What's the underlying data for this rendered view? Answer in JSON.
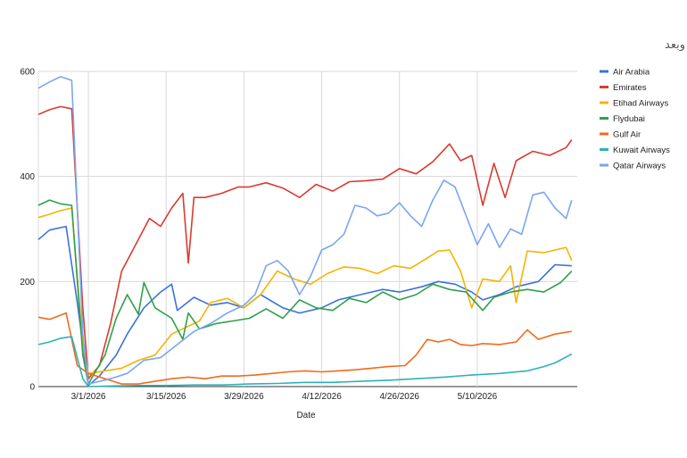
{
  "chart_data": {
    "type": "line",
    "title": "الرحلات اليومية - طيران الخليج قبل وبعد",
    "xlabel": "Date",
    "ylabel": "",
    "ylim": [
      0,
      600
    ],
    "yticks": [
      0,
      200,
      400,
      600
    ],
    "x_start": "2026-02-20",
    "x_end": "2026-05-28",
    "xticks": [
      {
        "date": "2026-03-01",
        "label": "3/1/2026"
      },
      {
        "date": "2026-03-15",
        "label": "3/15/2026"
      },
      {
        "date": "2026-03-29",
        "label": "3/29/2026"
      },
      {
        "date": "2026-04-12",
        "label": "4/12/2026"
      },
      {
        "date": "2026-04-26",
        "label": "4/26/2026"
      },
      {
        "date": "2026-05-10",
        "label": "5/10/2026"
      }
    ],
    "grid": true,
    "legend_position": "right",
    "series": [
      {
        "name": "Air Arabia",
        "color": "#3b73d9",
        "points": [
          [
            "2026-02-20",
            280
          ],
          [
            "2026-02-22",
            298
          ],
          [
            "2026-02-25",
            305
          ],
          [
            "2026-02-27",
            160
          ],
          [
            "2026-03-01",
            2
          ],
          [
            "2026-03-03",
            20
          ],
          [
            "2026-03-06",
            60
          ],
          [
            "2026-03-08",
            100
          ],
          [
            "2026-03-11",
            150
          ],
          [
            "2026-03-14",
            180
          ],
          [
            "2026-03-16",
            195
          ],
          [
            "2026-03-17",
            145
          ],
          [
            "2026-03-20",
            170
          ],
          [
            "2026-03-23",
            155
          ],
          [
            "2026-03-26",
            160
          ],
          [
            "2026-03-29",
            150
          ],
          [
            "2026-04-01",
            175
          ],
          [
            "2026-04-05",
            150
          ],
          [
            "2026-04-08",
            140
          ],
          [
            "2026-04-12",
            150
          ],
          [
            "2026-04-15",
            165
          ],
          [
            "2026-04-19",
            175
          ],
          [
            "2026-04-23",
            185
          ],
          [
            "2026-04-26",
            180
          ],
          [
            "2026-04-30",
            190
          ],
          [
            "2026-05-03",
            200
          ],
          [
            "2026-05-06",
            195
          ],
          [
            "2026-05-09",
            180
          ],
          [
            "2026-05-11",
            165
          ],
          [
            "2026-05-14",
            175
          ],
          [
            "2026-05-17",
            190
          ],
          [
            "2026-05-21",
            200
          ],
          [
            "2026-05-24",
            232
          ],
          [
            "2026-05-27",
            230
          ]
        ]
      },
      {
        "name": "Emirates",
        "color": "#d93b30",
        "points": [
          [
            "2026-02-20",
            518
          ],
          [
            "2026-02-22",
            527
          ],
          [
            "2026-02-24",
            533
          ],
          [
            "2026-02-26",
            529
          ],
          [
            "2026-02-28",
            150
          ],
          [
            "2026-03-01",
            15
          ],
          [
            "2026-03-03",
            40
          ],
          [
            "2026-03-05",
            120
          ],
          [
            "2026-03-07",
            220
          ],
          [
            "2026-03-09",
            260
          ],
          [
            "2026-03-12",
            320
          ],
          [
            "2026-03-14",
            305
          ],
          [
            "2026-03-16",
            340
          ],
          [
            "2026-03-18",
            368
          ],
          [
            "2026-03-19",
            235
          ],
          [
            "2026-03-20",
            360
          ],
          [
            "2026-03-22",
            360
          ],
          [
            "2026-03-25",
            368
          ],
          [
            "2026-03-28",
            380
          ],
          [
            "2026-03-30",
            380
          ],
          [
            "2026-04-02",
            388
          ],
          [
            "2026-04-05",
            378
          ],
          [
            "2026-04-08",
            360
          ],
          [
            "2026-04-11",
            385
          ],
          [
            "2026-04-14",
            372
          ],
          [
            "2026-04-17",
            390
          ],
          [
            "2026-04-20",
            392
          ],
          [
            "2026-04-23",
            395
          ],
          [
            "2026-04-26",
            415
          ],
          [
            "2026-04-29",
            405
          ],
          [
            "2026-05-02",
            428
          ],
          [
            "2026-05-05",
            462
          ],
          [
            "2026-05-07",
            430
          ],
          [
            "2026-05-09",
            440
          ],
          [
            "2026-05-11",
            345
          ],
          [
            "2026-05-13",
            425
          ],
          [
            "2026-05-15",
            360
          ],
          [
            "2026-05-17",
            430
          ],
          [
            "2026-05-20",
            448
          ],
          [
            "2026-05-23",
            440
          ],
          [
            "2026-05-26",
            455
          ],
          [
            "2026-05-27",
            470
          ]
        ]
      },
      {
        "name": "Etihad Airways",
        "color": "#f4b400",
        "points": [
          [
            "2026-02-20",
            322
          ],
          [
            "2026-02-22",
            328
          ],
          [
            "2026-02-24",
            335
          ],
          [
            "2026-02-26",
            340
          ],
          [
            "2026-02-28",
            80
          ],
          [
            "2026-03-01",
            25
          ],
          [
            "2026-03-04",
            30
          ],
          [
            "2026-03-07",
            35
          ],
          [
            "2026-03-10",
            50
          ],
          [
            "2026-03-13",
            60
          ],
          [
            "2026-03-16",
            100
          ],
          [
            "2026-03-18",
            110
          ],
          [
            "2026-03-21",
            125
          ],
          [
            "2026-03-23",
            160
          ],
          [
            "2026-03-26",
            168
          ],
          [
            "2026-03-29",
            150
          ],
          [
            "2026-04-01",
            175
          ],
          [
            "2026-04-04",
            220
          ],
          [
            "2026-04-07",
            205
          ],
          [
            "2026-04-10",
            195
          ],
          [
            "2026-04-13",
            215
          ],
          [
            "2026-04-16",
            228
          ],
          [
            "2026-04-19",
            225
          ],
          [
            "2026-04-22",
            215
          ],
          [
            "2026-04-25",
            230
          ],
          [
            "2026-04-28",
            225
          ],
          [
            "2026-05-01",
            245
          ],
          [
            "2026-05-03",
            258
          ],
          [
            "2026-05-05",
            260
          ],
          [
            "2026-05-07",
            220
          ],
          [
            "2026-05-09",
            150
          ],
          [
            "2026-05-11",
            205
          ],
          [
            "2026-05-14",
            200
          ],
          [
            "2026-05-16",
            230
          ],
          [
            "2026-05-17",
            160
          ],
          [
            "2026-05-19",
            258
          ],
          [
            "2026-05-22",
            255
          ],
          [
            "2026-05-26",
            265
          ],
          [
            "2026-05-27",
            240
          ]
        ]
      },
      {
        "name": "Flydubai",
        "color": "#30a04a",
        "points": [
          [
            "2026-02-20",
            345
          ],
          [
            "2026-02-22",
            355
          ],
          [
            "2026-02-24",
            348
          ],
          [
            "2026-02-26",
            345
          ],
          [
            "2026-02-28",
            60
          ],
          [
            "2026-03-01",
            5
          ],
          [
            "2026-03-04",
            60
          ],
          [
            "2026-03-06",
            130
          ],
          [
            "2026-03-08",
            175
          ],
          [
            "2026-03-10",
            138
          ],
          [
            "2026-03-11",
            198
          ],
          [
            "2026-03-13",
            150
          ],
          [
            "2026-03-16",
            130
          ],
          [
            "2026-03-18",
            90
          ],
          [
            "2026-03-19",
            140
          ],
          [
            "2026-03-21",
            110
          ],
          [
            "2026-03-24",
            120
          ],
          [
            "2026-03-27",
            125
          ],
          [
            "2026-03-30",
            130
          ],
          [
            "2026-04-02",
            148
          ],
          [
            "2026-04-05",
            130
          ],
          [
            "2026-04-08",
            165
          ],
          [
            "2026-04-11",
            150
          ],
          [
            "2026-04-14",
            145
          ],
          [
            "2026-04-17",
            168
          ],
          [
            "2026-04-20",
            160
          ],
          [
            "2026-04-23",
            180
          ],
          [
            "2026-04-26",
            165
          ],
          [
            "2026-04-29",
            175
          ],
          [
            "2026-05-02",
            195
          ],
          [
            "2026-05-05",
            185
          ],
          [
            "2026-05-08",
            180
          ],
          [
            "2026-05-11",
            145
          ],
          [
            "2026-05-13",
            170
          ],
          [
            "2026-05-16",
            180
          ],
          [
            "2026-05-19",
            185
          ],
          [
            "2026-05-22",
            180
          ],
          [
            "2026-05-25",
            198
          ],
          [
            "2026-05-27",
            220
          ]
        ]
      },
      {
        "name": "Gulf Air",
        "color": "#f26b1d",
        "points": [
          [
            "2026-02-20",
            132
          ],
          [
            "2026-02-22",
            128
          ],
          [
            "2026-02-25",
            140
          ],
          [
            "2026-02-27",
            40
          ],
          [
            "2026-03-01",
            25
          ],
          [
            "2026-03-04",
            15
          ],
          [
            "2026-03-07",
            5
          ],
          [
            "2026-03-10",
            5
          ],
          [
            "2026-03-13",
            10
          ],
          [
            "2026-03-16",
            15
          ],
          [
            "2026-03-19",
            18
          ],
          [
            "2026-03-22",
            15
          ],
          [
            "2026-03-25",
            20
          ],
          [
            "2026-03-28",
            20
          ],
          [
            "2026-03-31",
            22
          ],
          [
            "2026-04-03",
            25
          ],
          [
            "2026-04-06",
            28
          ],
          [
            "2026-04-09",
            30
          ],
          [
            "2026-04-12",
            28
          ],
          [
            "2026-04-15",
            30
          ],
          [
            "2026-04-18",
            32
          ],
          [
            "2026-04-21",
            35
          ],
          [
            "2026-04-24",
            38
          ],
          [
            "2026-04-27",
            40
          ],
          [
            "2026-04-29",
            60
          ],
          [
            "2026-05-01",
            90
          ],
          [
            "2026-05-03",
            85
          ],
          [
            "2026-05-05",
            90
          ],
          [
            "2026-05-07",
            80
          ],
          [
            "2026-05-09",
            78
          ],
          [
            "2026-05-11",
            82
          ],
          [
            "2026-05-14",
            80
          ],
          [
            "2026-05-17",
            85
          ],
          [
            "2026-05-19",
            108
          ],
          [
            "2026-05-21",
            90
          ],
          [
            "2026-05-24",
            100
          ],
          [
            "2026-05-27",
            105
          ]
        ]
      },
      {
        "name": "Kuwait Airways",
        "color": "#2bb3b8",
        "points": [
          [
            "2026-02-20",
            80
          ],
          [
            "2026-02-22",
            85
          ],
          [
            "2026-02-24",
            92
          ],
          [
            "2026-02-26",
            95
          ],
          [
            "2026-02-28",
            15
          ],
          [
            "2026-03-01",
            0
          ],
          [
            "2026-03-05",
            1
          ],
          [
            "2026-03-10",
            2
          ],
          [
            "2026-03-15",
            2
          ],
          [
            "2026-03-20",
            3
          ],
          [
            "2026-03-25",
            3
          ],
          [
            "2026-03-30",
            5
          ],
          [
            "2026-04-04",
            6
          ],
          [
            "2026-04-09",
            8
          ],
          [
            "2026-04-14",
            8
          ],
          [
            "2026-04-19",
            10
          ],
          [
            "2026-04-24",
            12
          ],
          [
            "2026-04-29",
            15
          ],
          [
            "2026-05-04",
            18
          ],
          [
            "2026-05-09",
            22
          ],
          [
            "2026-05-14",
            25
          ],
          [
            "2026-05-19",
            30
          ],
          [
            "2026-05-22",
            38
          ],
          [
            "2026-05-24",
            45
          ],
          [
            "2026-05-27",
            62
          ]
        ]
      },
      {
        "name": "Qatar Airways",
        "color": "#7aa6f0",
        "points": [
          [
            "2026-02-20",
            568
          ],
          [
            "2026-02-22",
            580
          ],
          [
            "2026-02-24",
            590
          ],
          [
            "2026-02-26",
            583
          ],
          [
            "2026-02-28",
            100
          ],
          [
            "2026-03-01",
            5
          ],
          [
            "2026-03-05",
            15
          ],
          [
            "2026-03-08",
            25
          ],
          [
            "2026-03-11",
            50
          ],
          [
            "2026-03-14",
            55
          ],
          [
            "2026-03-17",
            80
          ],
          [
            "2026-03-20",
            105
          ],
          [
            "2026-03-23",
            120
          ],
          [
            "2026-03-26",
            140
          ],
          [
            "2026-03-29",
            155
          ],
          [
            "2026-03-31",
            175
          ],
          [
            "2026-04-02",
            230
          ],
          [
            "2026-04-04",
            240
          ],
          [
            "2026-04-06",
            220
          ],
          [
            "2026-04-08",
            175
          ],
          [
            "2026-04-10",
            210
          ],
          [
            "2026-04-12",
            260
          ],
          [
            "2026-04-14",
            270
          ],
          [
            "2026-04-16",
            290
          ],
          [
            "2026-04-18",
            345
          ],
          [
            "2026-04-20",
            340
          ],
          [
            "2026-04-22",
            325
          ],
          [
            "2026-04-24",
            330
          ],
          [
            "2026-04-26",
            350
          ],
          [
            "2026-04-28",
            325
          ],
          [
            "2026-04-30",
            305
          ],
          [
            "2026-05-02",
            355
          ],
          [
            "2026-05-04",
            393
          ],
          [
            "2026-05-06",
            380
          ],
          [
            "2026-05-08",
            325
          ],
          [
            "2026-05-10",
            270
          ],
          [
            "2026-05-12",
            310
          ],
          [
            "2026-05-14",
            265
          ],
          [
            "2026-05-16",
            300
          ],
          [
            "2026-05-18",
            290
          ],
          [
            "2026-05-20",
            365
          ],
          [
            "2026-05-22",
            370
          ],
          [
            "2026-05-24",
            340
          ],
          [
            "2026-05-26",
            320
          ],
          [
            "2026-05-27",
            355
          ]
        ]
      }
    ]
  }
}
